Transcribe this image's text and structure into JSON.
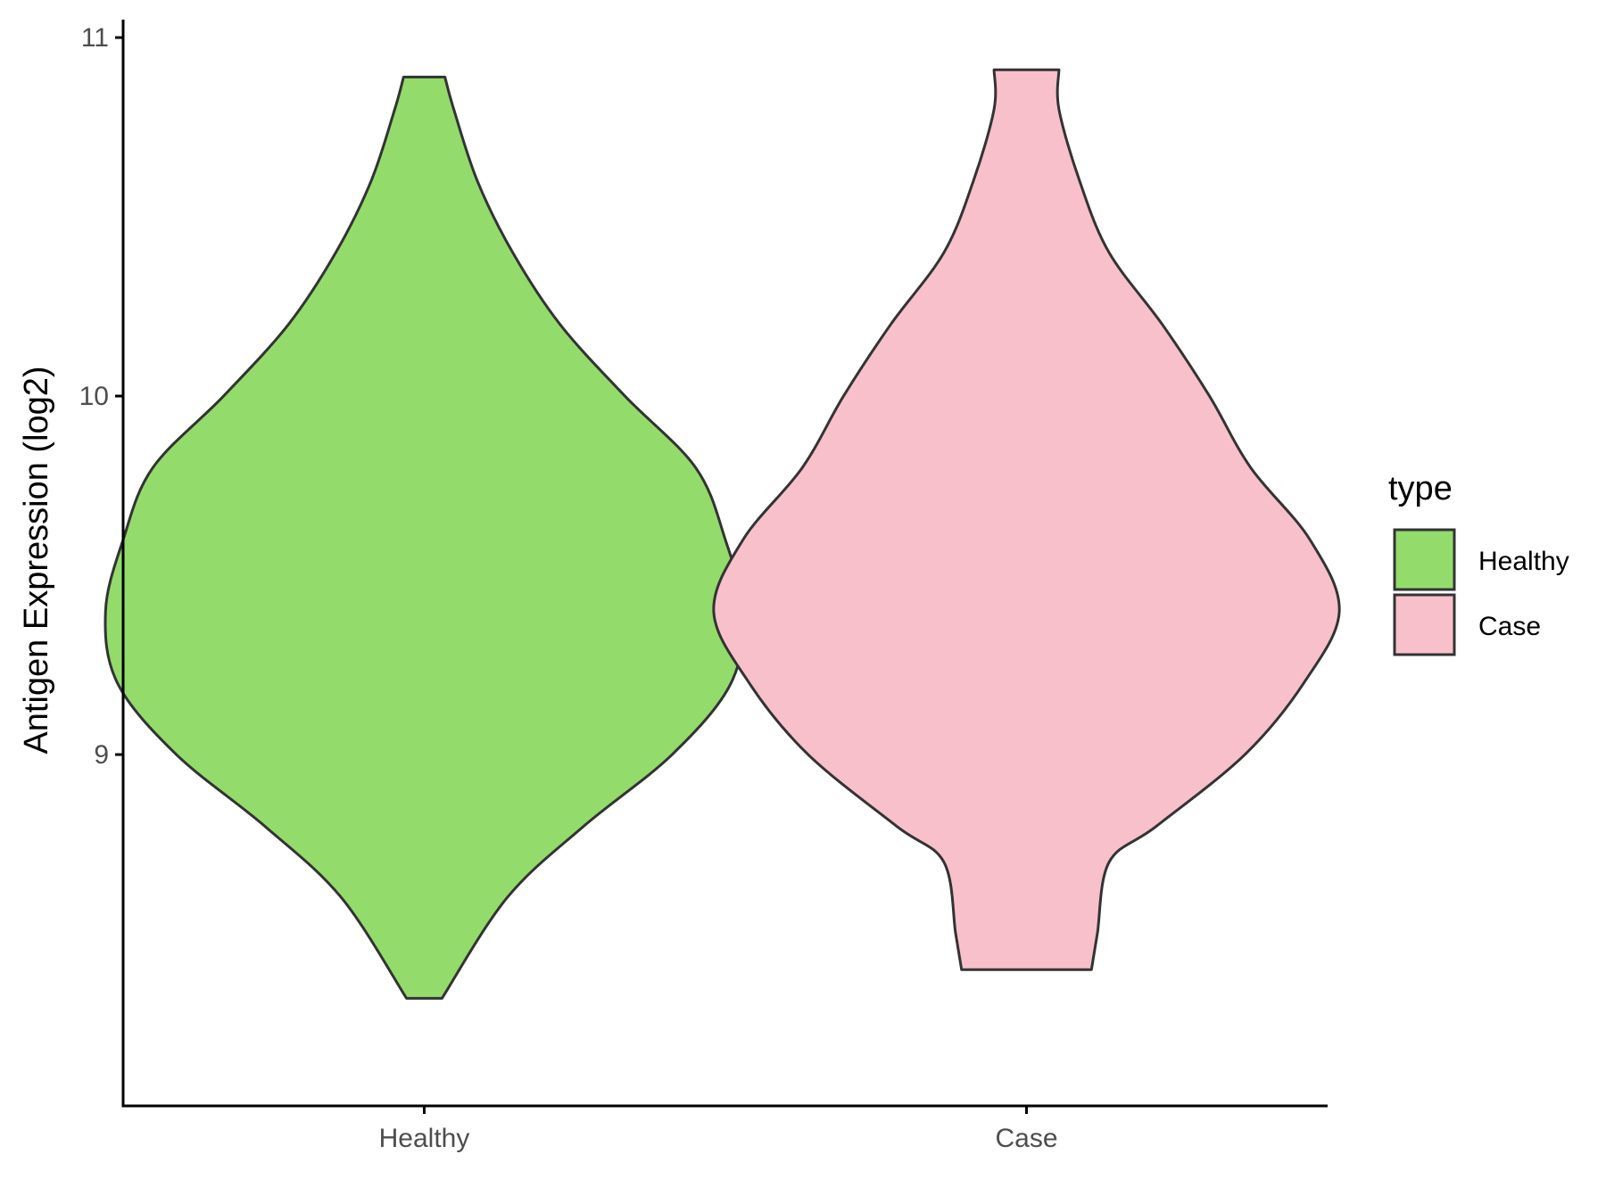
{
  "chart_data": {
    "type": "violin",
    "title": "",
    "xlabel": "",
    "ylabel": "Antigen Expression (log2)",
    "ylim": [
      8.02,
      11.05
    ],
    "y_ticks": [
      9,
      10,
      11
    ],
    "categories": [
      "Healthy",
      "Case"
    ],
    "legend": {
      "title": "type",
      "placement": "right",
      "entries": [
        {
          "label": "Healthy",
          "color": "#93DC6B"
        },
        {
          "label": "Case",
          "color": "#F8C0CB"
        }
      ]
    },
    "series": [
      {
        "category": "Healthy",
        "color": "#93DC6B",
        "min": 8.32,
        "max": 10.89,
        "profile": [
          [
            8.32,
            0.03
          ],
          [
            8.6,
            0.14
          ],
          [
            8.8,
            0.27
          ],
          [
            9.0,
            0.42
          ],
          [
            9.2,
            0.52
          ],
          [
            9.4,
            0.54
          ],
          [
            9.6,
            0.51
          ],
          [
            9.8,
            0.46
          ],
          [
            10.0,
            0.34
          ],
          [
            10.2,
            0.23
          ],
          [
            10.4,
            0.15
          ],
          [
            10.6,
            0.09
          ],
          [
            10.8,
            0.05
          ],
          [
            10.89,
            0.035
          ]
        ]
      },
      {
        "category": "Case",
        "color": "#F8C0CB",
        "min": 8.4,
        "max": 10.91,
        "profile": [
          [
            8.4,
            0.11
          ],
          [
            8.5,
            0.12
          ],
          [
            8.7,
            0.14
          ],
          [
            8.8,
            0.22
          ],
          [
            9.0,
            0.37
          ],
          [
            9.2,
            0.47
          ],
          [
            9.4,
            0.53
          ],
          [
            9.6,
            0.48
          ],
          [
            9.8,
            0.38
          ],
          [
            10.0,
            0.31
          ],
          [
            10.2,
            0.23
          ],
          [
            10.4,
            0.14
          ],
          [
            10.6,
            0.09
          ],
          [
            10.8,
            0.055
          ],
          [
            10.91,
            0.055
          ]
        ]
      }
    ]
  }
}
